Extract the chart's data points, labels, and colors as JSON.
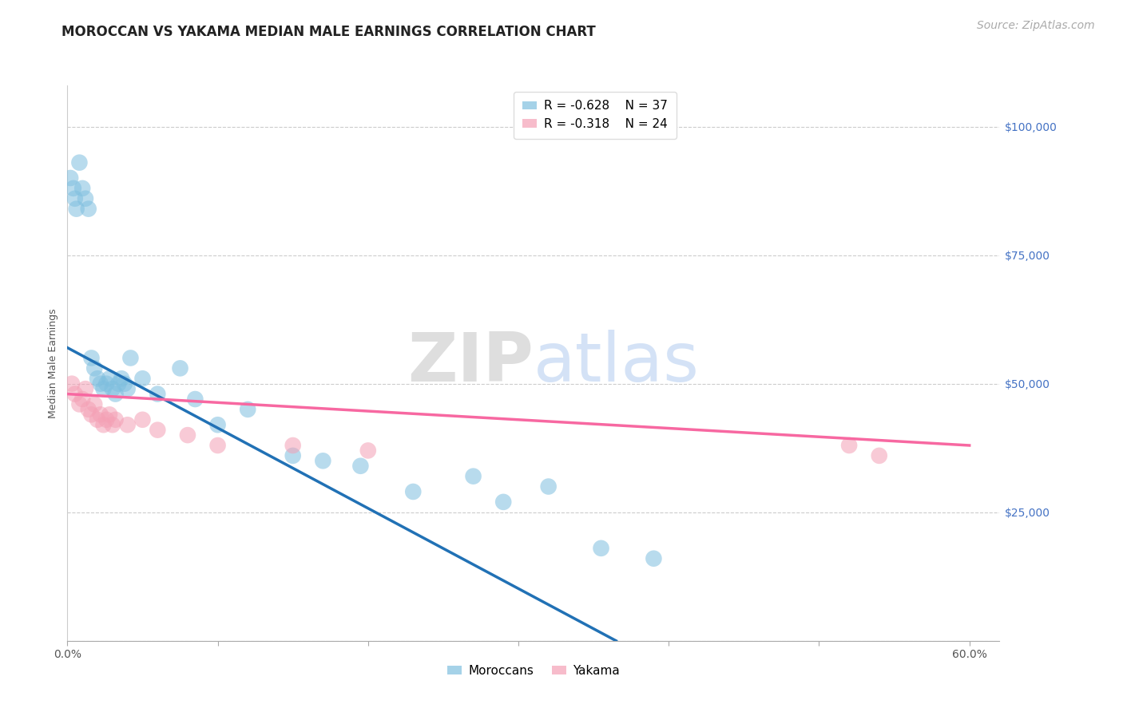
{
  "title": "MOROCCAN VS YAKAMA MEDIAN MALE EARNINGS CORRELATION CHART",
  "source_text": "Source: ZipAtlas.com",
  "ylabel": "Median Male Earnings",
  "xlim": [
    0.0,
    0.62
  ],
  "ylim": [
    0,
    108000
  ],
  "xtick_labels": [
    "0.0%",
    "",
    "",
    "",
    "",
    "",
    "60.0%"
  ],
  "xtick_values": [
    0.0,
    0.1,
    0.2,
    0.3,
    0.4,
    0.5,
    0.6
  ],
  "ytick_values": [
    0,
    25000,
    50000,
    75000,
    100000
  ],
  "ytick_labels_right": [
    "",
    "$25,000",
    "$50,000",
    "$75,000",
    "$100,000"
  ],
  "grid_color": "#cccccc",
  "background_color": "#ffffff",
  "moroccan_color": "#7fbfdf",
  "yakama_color": "#f4a0b5",
  "moroccan_line_color": "#2171b5",
  "yakama_line_color": "#f768a1",
  "moroccan_R": "-0.628",
  "moroccan_N": "37",
  "yakama_R": "-0.318",
  "yakama_N": "24",
  "watermark_zip": "ZIP",
  "watermark_atlas": "atlas",
  "moroccan_x": [
    0.002,
    0.004,
    0.005,
    0.006,
    0.008,
    0.01,
    0.012,
    0.014,
    0.016,
    0.018,
    0.02,
    0.022,
    0.024,
    0.026,
    0.028,
    0.03,
    0.032,
    0.034,
    0.036,
    0.038,
    0.04,
    0.042,
    0.05,
    0.06,
    0.075,
    0.085,
    0.1,
    0.12,
    0.15,
    0.17,
    0.195,
    0.23,
    0.27,
    0.29,
    0.32,
    0.355,
    0.39
  ],
  "moroccan_y": [
    90000,
    88000,
    86000,
    84000,
    93000,
    88000,
    86000,
    84000,
    55000,
    53000,
    51000,
    50000,
    49000,
    50000,
    51000,
    49000,
    48000,
    50000,
    51000,
    50000,
    49000,
    55000,
    51000,
    48000,
    53000,
    47000,
    42000,
    45000,
    36000,
    35000,
    34000,
    29000,
    32000,
    27000,
    30000,
    18000,
    16000
  ],
  "yakama_x": [
    0.003,
    0.005,
    0.008,
    0.01,
    0.012,
    0.014,
    0.016,
    0.018,
    0.02,
    0.022,
    0.024,
    0.026,
    0.028,
    0.03,
    0.032,
    0.04,
    0.05,
    0.06,
    0.08,
    0.1,
    0.15,
    0.2,
    0.52,
    0.54
  ],
  "yakama_y": [
    50000,
    48000,
    46000,
    47000,
    49000,
    45000,
    44000,
    46000,
    43000,
    44000,
    42000,
    43000,
    44000,
    42000,
    43000,
    42000,
    43000,
    41000,
    40000,
    38000,
    38000,
    37000,
    38000,
    36000
  ],
  "moroccan_trendline_x": [
    0.0,
    0.365
  ],
  "moroccan_trendline_y": [
    57000,
    0
  ],
  "yakama_trendline_x": [
    0.0,
    0.6
  ],
  "yakama_trendline_y": [
    48000,
    38000
  ],
  "title_fontsize": 12,
  "axis_label_fontsize": 9,
  "tick_fontsize": 10,
  "legend_fontsize": 11,
  "source_fontsize": 10,
  "ytick_color": "#4472c4",
  "title_color": "#222222",
  "source_color": "#aaaaaa"
}
